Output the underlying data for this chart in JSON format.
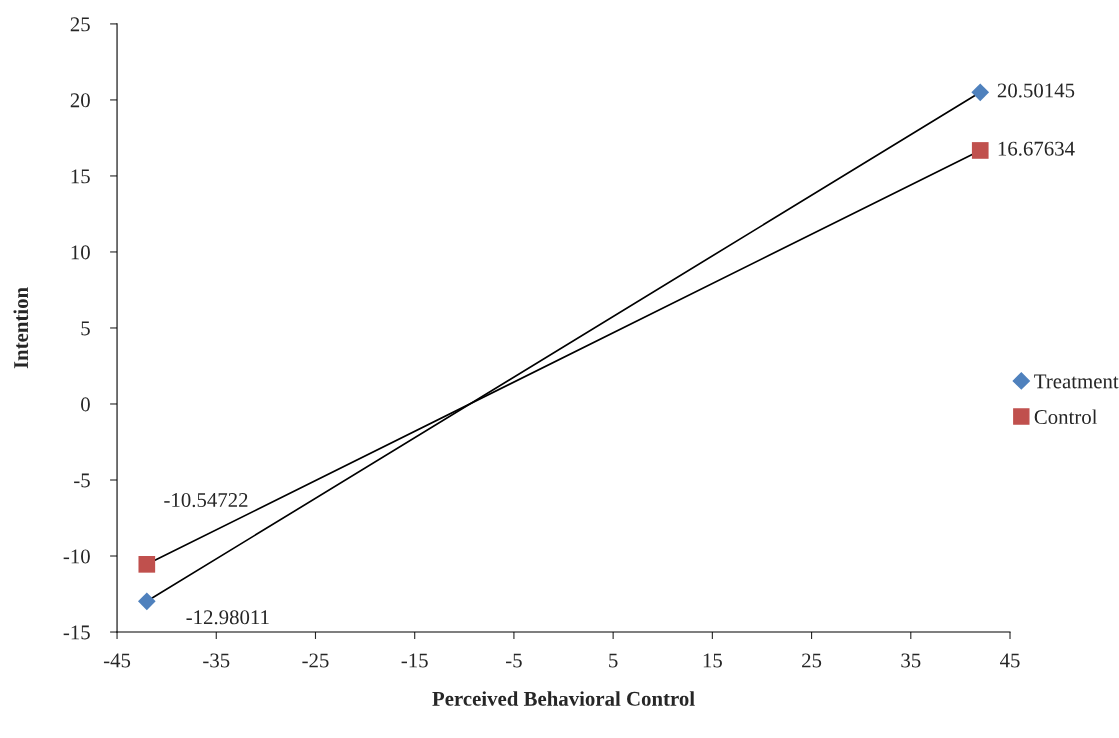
{
  "chart_data": {
    "type": "line",
    "xlabel": "Perceived Behavioral Control",
    "ylabel": "Intention",
    "x": [
      -42,
      42
    ],
    "series": [
      {
        "name": "Treatment",
        "color": "#000000",
        "colors": [
          "#4f81bd",
          "#4f81bd"
        ],
        "marker": "diamond",
        "values": [
          -12.98011,
          20.50145
        ]
      },
      {
        "name": "Control",
        "color": "#000000",
        "colors": [
          "#c0504d",
          "#c0504d"
        ],
        "marker": "square",
        "values": [
          -10.54722,
          16.67634
        ]
      }
    ],
    "data_labels": true,
    "legend": "right",
    "grid": false,
    "xlim": [
      -45,
      45
    ],
    "xticks": [
      -45,
      -35,
      -25,
      -15,
      -5,
      5,
      15,
      25,
      35,
      45
    ],
    "ylim": [
      -15,
      25
    ],
    "yticks": [
      -15,
      -10,
      -5,
      0,
      5,
      10,
      15,
      20,
      25
    ]
  }
}
